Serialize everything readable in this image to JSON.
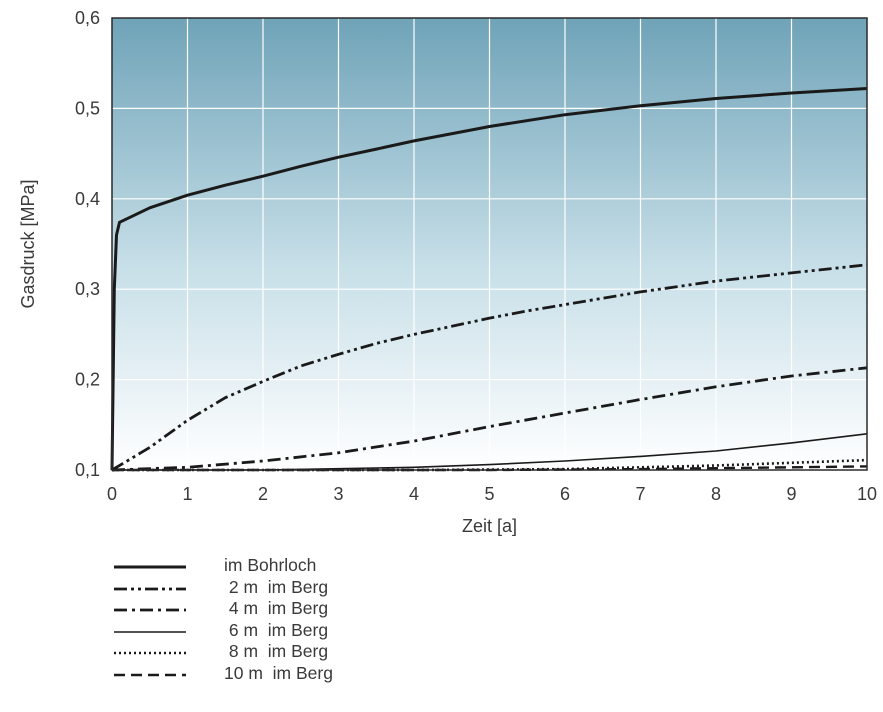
{
  "chart_data": {
    "type": "line",
    "xlabel": "Zeit [a]",
    "ylabel": "Gasdruck [MPa]",
    "xlim": [
      0,
      10
    ],
    "ylim": [
      0.1,
      0.6
    ],
    "xticks": [
      "0",
      "1",
      "2",
      "3",
      "4",
      "5",
      "6",
      "7",
      "8",
      "9",
      "10"
    ],
    "yticks": [
      "0,1",
      "0,2",
      "0,3",
      "0,4",
      "0,5",
      "0,6"
    ],
    "grid": true,
    "legend_position": "bottom-left",
    "series": [
      {
        "name": "im Bohrloch",
        "dash": "solid-thick",
        "x": [
          0,
          0.03,
          0.06,
          0.1,
          0.2,
          0.5,
          1,
          1.5,
          2,
          2.5,
          3,
          3.5,
          4,
          5,
          6,
          7,
          8,
          9,
          10
        ],
        "y": [
          0.1,
          0.3,
          0.36,
          0.374,
          0.378,
          0.39,
          0.404,
          0.415,
          0.425,
          0.436,
          0.446,
          0.455,
          0.464,
          0.48,
          0.493,
          0.503,
          0.511,
          0.517,
          0.522
        ]
      },
      {
        "name": "2 m im Berg",
        "dash": "dash-dot-dot",
        "x": [
          0,
          0.5,
          1,
          1.5,
          2,
          2.5,
          3,
          3.5,
          4,
          4.5,
          5,
          5.5,
          6,
          7,
          8,
          9,
          10
        ],
        "y": [
          0.1,
          0.125,
          0.155,
          0.18,
          0.198,
          0.215,
          0.228,
          0.24,
          0.25,
          0.259,
          0.268,
          0.276,
          0.283,
          0.297,
          0.309,
          0.318,
          0.327
        ]
      },
      {
        "name": "4 m im Berg",
        "dash": "dash-dot",
        "x": [
          0,
          1,
          2,
          3,
          4,
          5,
          6,
          7,
          8,
          9,
          10
        ],
        "y": [
          0.1,
          0.103,
          0.11,
          0.119,
          0.132,
          0.148,
          0.163,
          0.178,
          0.192,
          0.204,
          0.213
        ]
      },
      {
        "name": "6 m im Berg",
        "dash": "solid-thin",
        "x": [
          0,
          2,
          4,
          5,
          6,
          7,
          8,
          9,
          10
        ],
        "y": [
          0.1,
          0.1,
          0.103,
          0.106,
          0.11,
          0.115,
          0.121,
          0.13,
          0.14
        ]
      },
      {
        "name": "8 m im Berg",
        "dash": "dotted",
        "x": [
          0,
          4,
          6,
          7,
          8,
          9,
          10
        ],
        "y": [
          0.1,
          0.1,
          0.101,
          0.103,
          0.105,
          0.108,
          0.111
        ]
      },
      {
        "name": "10 m im Berg",
        "dash": "dashed",
        "x": [
          0,
          5,
          7,
          8,
          9,
          10
        ],
        "y": [
          0.1,
          0.1,
          0.101,
          0.102,
          0.103,
          0.104
        ]
      }
    ],
    "legend": [
      {
        "prefix": "",
        "text": "im Bohrloch"
      },
      {
        "prefix": " 2 m",
        "text": "im Berg"
      },
      {
        "prefix": " 4 m",
        "text": "im Berg"
      },
      {
        "prefix": " 6 m",
        "text": "im Berg"
      },
      {
        "prefix": " 8 m",
        "text": "im Berg"
      },
      {
        "prefix": "10 m",
        "text": "im Berg"
      }
    ]
  }
}
